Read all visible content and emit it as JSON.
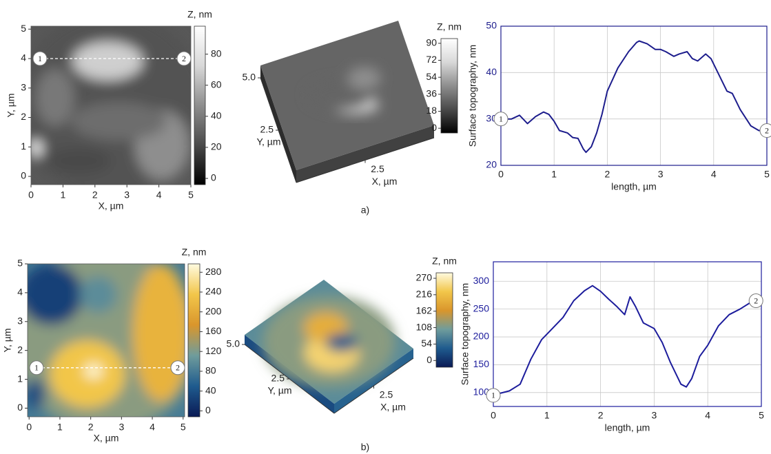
{
  "captions": [
    "a)",
    "b)"
  ],
  "chart_data": [
    {
      "type": "map",
      "xlabel": "X, µm",
      "ylabel": "Y, µm",
      "xlim": [
        0,
        5
      ],
      "ylim": [
        -0.28,
        5.1
      ],
      "xticks": [
        0,
        1,
        2,
        3,
        4,
        5
      ],
      "yticks": [
        0,
        1,
        2,
        3,
        4,
        5
      ],
      "colorbar": {
        "label": "Z, nm",
        "zlim": [
          -4,
          98
        ],
        "ticks": [
          0,
          20,
          40,
          60,
          80
        ],
        "colormap": [
          "#000000",
          "#4a4a4a",
          "#8e8e8e",
          "#d8d8d8",
          "#ffffff"
        ]
      },
      "markers": [
        "1",
        "2"
      ],
      "marker_y": 4
    },
    {
      "type": "surface",
      "xlabel": "X, µm",
      "ylabel": "Y, µm",
      "xlim": [
        0,
        5
      ],
      "ylim": [
        0,
        5
      ],
      "xticks": [
        2.5
      ],
      "yticks": [
        {
          "value": 5,
          "label": "5.0"
        },
        2.5
      ],
      "colorbar": {
        "label": "Z, nm",
        "zlim": [
          -5,
          95
        ],
        "ticks": [
          0,
          18,
          36,
          54,
          72,
          90
        ],
        "colormap": [
          "#000000",
          "#4a4a4a",
          "#8e8e8e",
          "#d8d8d8",
          "#ffffff"
        ]
      }
    },
    {
      "type": "line",
      "xlabel": "length, µm",
      "ylabel": "Surface topography, nm",
      "xlim": [
        0,
        5
      ],
      "ylim": [
        20,
        50
      ],
      "xticks": [
        0,
        1,
        2,
        3,
        4,
        5
      ],
      "yticks": [
        20,
        30,
        40,
        50
      ],
      "grid": true,
      "color": "#1c1c8c",
      "x": [
        0,
        0.2,
        0.35,
        0.5,
        0.65,
        0.8,
        0.9,
        1.0,
        1.1,
        1.25,
        1.35,
        1.45,
        1.55,
        1.6,
        1.7,
        1.8,
        1.9,
        2.0,
        2.2,
        2.4,
        2.55,
        2.6,
        2.75,
        2.9,
        3.0,
        3.1,
        3.25,
        3.35,
        3.5,
        3.6,
        3.7,
        3.85,
        3.95,
        4.1,
        4.25,
        4.35,
        4.5,
        4.7,
        4.85,
        5.0
      ],
      "values": [
        30,
        30,
        30.8,
        29,
        30.5,
        31.5,
        31,
        29.5,
        27.5,
        27,
        26,
        25.8,
        23.5,
        22.8,
        24,
        27,
        31,
        36,
        41,
        44.5,
        46.5,
        46.8,
        46.2,
        45,
        45,
        44.5,
        43.5,
        44,
        44.5,
        43,
        42.5,
        44,
        43,
        39.5,
        36,
        35.5,
        32,
        28.5,
        27.5,
        27.5
      ],
      "markers": [
        "1",
        "2"
      ]
    },
    {
      "type": "map",
      "xlabel": "X, µm",
      "ylabel": "Y, µm",
      "xlim": [
        -0.05,
        5.05
      ],
      "ylim": [
        -0.3,
        5
      ],
      "xticks": [
        0,
        1,
        2,
        3,
        4,
        5
      ],
      "yticks": [
        0,
        1,
        2,
        3,
        4,
        5
      ],
      "colorbar": {
        "label": "Z, nm",
        "zlim": [
          -12,
          297
        ],
        "ticks": [
          0,
          40,
          80,
          120,
          160,
          200,
          240,
          280
        ],
        "colormap": [
          "#0a1a55",
          "#1f5b8e",
          "#6f9c9c",
          "#d9962c",
          "#f2c64a",
          "#fffbe0"
        ]
      },
      "markers": [
        "1",
        "2"
      ],
      "marker_y": 1.4
    },
    {
      "type": "surface",
      "xlabel": "X, µm",
      "ylabel": "Y, µm",
      "xlim": [
        0,
        5
      ],
      "ylim": [
        0,
        5
      ],
      "xticks": [
        2.5
      ],
      "yticks": [
        {
          "value": 5,
          "label": "5.0"
        },
        2.5
      ],
      "colorbar": {
        "label": "Z, nm",
        "zlim": [
          -22,
          288
        ],
        "ticks": [
          0,
          54,
          108,
          162,
          216,
          270
        ],
        "colormap": [
          "#0a1a55",
          "#1f5b8e",
          "#6f9c9c",
          "#d9962c",
          "#f2c64a",
          "#fffbe0"
        ]
      }
    },
    {
      "type": "line",
      "xlabel": "length, µm",
      "ylabel": "Surface topography, nm",
      "xlim": [
        0,
        5
      ],
      "ylim": [
        75,
        335
      ],
      "xticks": [
        0,
        1,
        2,
        3,
        4,
        5
      ],
      "yticks": [
        100,
        150,
        200,
        250,
        300
      ],
      "grid": true,
      "color": "#1c1c9c",
      "x": [
        0,
        0.1,
        0.3,
        0.5,
        0.7,
        0.9,
        1.1,
        1.3,
        1.5,
        1.7,
        1.85,
        2.0,
        2.15,
        2.3,
        2.45,
        2.55,
        2.65,
        2.8,
        3.0,
        3.15,
        3.3,
        3.5,
        3.6,
        3.7,
        3.85,
        4.0,
        4.2,
        4.4,
        4.6,
        4.8,
        4.9
      ],
      "values": [
        95,
        98,
        103,
        115,
        160,
        195,
        215,
        235,
        265,
        283,
        292,
        282,
        268,
        255,
        240,
        272,
        255,
        225,
        215,
        190,
        155,
        115,
        110,
        125,
        165,
        185,
        220,
        240,
        250,
        262,
        265
      ],
      "markers": [
        "1",
        "2"
      ]
    }
  ]
}
